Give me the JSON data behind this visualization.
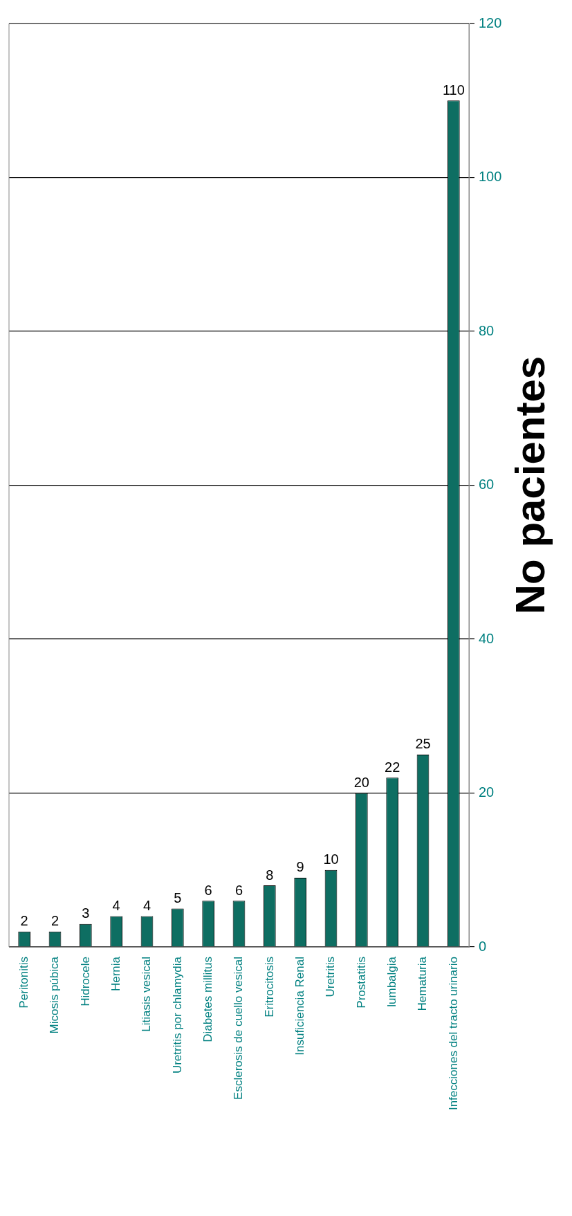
{
  "chart_data": {
    "type": "bar",
    "title": "No pacientes",
    "categories": [
      "Peritonitis",
      "Micosis púbica",
      "Hidrocele",
      "Hernia",
      "Litiasis vesical",
      "Uretritis por chlamydia",
      "Diabetes millitus",
      "Esclerosis de cuello vesical",
      "Eritrocitosis",
      "Insuficiencia Renal",
      "Uretritis",
      "Prostatitis",
      "lumbalgia",
      "Hematuria",
      "Infecciones del tracto urinario"
    ],
    "values": [
      2,
      2,
      3,
      4,
      4,
      5,
      6,
      6,
      8,
      9,
      10,
      20,
      22,
      25,
      110
    ],
    "color": "#0e6e62",
    "ylim": [
      0,
      120
    ],
    "yticks": [
      0,
      20,
      40,
      60,
      80,
      100,
      120
    ],
    "grid": "y",
    "legend": false,
    "data_labels": true
  }
}
